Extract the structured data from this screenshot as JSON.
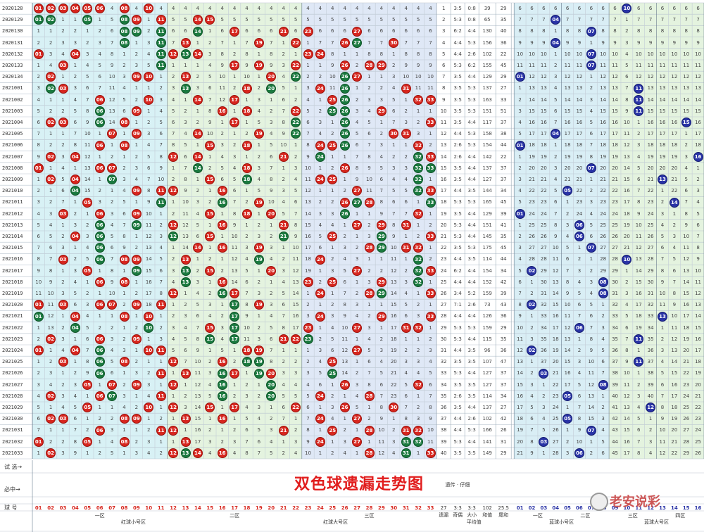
{
  "chart_data": {
    "type": "table",
    "title": "双色球遗漏走势图",
    "issues": [
      "2020128",
      "2020129",
      "2020130",
      "2020131",
      "2020132",
      "2020133",
      "2020134",
      "2021001",
      "2021002",
      "2021003",
      "2021004",
      "2021005",
      "2021006",
      "2021007",
      "2021008",
      "2021009",
      "2021010",
      "2021011",
      "2021012",
      "2021013",
      "2021014",
      "2021015",
      "2021016",
      "2021017",
      "2021018",
      "2021019",
      "2021020",
      "2021021",
      "2021022",
      "2021023",
      "2021024",
      "2021025",
      "2021026",
      "2021027",
      "2021028",
      "2021029",
      "2021030",
      "2021031",
      "2021032",
      "2021033"
    ],
    "red_draws": [
      [
        1,
        2,
        3,
        4,
        5,
        6,
        8,
        10
      ],
      [
        1,
        2,
        5,
        8,
        9,
        11,
        14,
        15
      ],
      [
        8,
        9,
        11,
        14,
        17,
        21,
        23,
        27
      ],
      [
        8,
        11,
        13,
        19,
        22,
        26,
        27,
        30
      ],
      [
        1,
        4,
        11,
        12,
        13,
        14,
        23,
        24
      ],
      [
        3,
        11,
        17,
        19,
        22,
        26,
        28,
        29
      ],
      [
        2,
        9,
        10,
        13,
        20,
        22,
        26,
        27
      ],
      [
        2,
        3,
        13,
        18,
        20,
        24,
        26,
        31
      ],
      [
        6,
        10,
        14,
        17,
        25,
        26,
        32,
        33
      ],
      [
        6,
        9,
        16,
        18,
        22,
        25,
        26,
        29
      ],
      [
        2,
        3,
        6,
        8,
        17,
        22,
        26,
        33
      ],
      [
        7,
        9,
        14,
        19,
        22,
        26,
        30,
        31
      ],
      [
        6,
        8,
        15,
        18,
        24,
        25,
        26,
        32
      ],
      [
        2,
        4,
        12,
        14,
        21,
        24,
        32,
        33
      ],
      [
        1,
        6,
        7,
        14,
        18,
        26,
        32,
        33
      ],
      [
        2,
        4,
        7,
        15,
        18,
        24,
        25,
        32
      ],
      [
        4,
        9,
        11,
        12,
        16,
        27,
        32,
        33
      ],
      [
        5,
        11,
        16,
        19,
        26,
        27,
        28,
        33
      ],
      [
        3,
        6,
        9,
        15,
        18,
        20,
        26,
        32
      ],
      [
        6,
        9,
        12,
        16,
        21,
        27,
        29,
        31
      ],
      [
        4,
        6,
        12,
        15,
        21,
        25,
        29,
        33
      ],
      [
        6,
        14,
        16,
        19,
        28,
        29,
        31,
        32
      ],
      [
        3,
        6,
        8,
        9,
        13,
        19,
        24,
        32
      ],
      [
        5,
        9,
        13,
        15,
        20,
        27,
        32,
        33
      ],
      [
        6,
        8,
        13,
        16,
        23,
        25,
        29,
        32
      ],
      [
        12,
        16,
        17,
        24,
        28,
        29,
        33
      ],
      [
        1,
        3,
        6,
        7,
        9,
        11,
        17,
        19
      ],
      [
        1,
        4,
        8,
        10,
        17,
        24,
        29,
        33
      ],
      [
        4,
        10,
        15,
        17,
        23,
        27,
        31,
        32
      ],
      [
        2,
        6,
        9,
        15,
        17,
        21,
        22,
        23
      ],
      [
        1,
        4,
        6,
        10,
        11,
        18,
        19,
        27
      ],
      [
        3,
        6,
        8,
        12,
        16,
        18,
        19,
        25
      ],
      [
        6,
        11,
        13,
        16,
        17,
        19,
        20,
        25
      ],
      [
        5,
        7,
        9,
        12,
        16,
        20,
        26,
        32
      ],
      [
        2,
        6,
        7,
        11,
        16,
        20,
        24,
        28
      ],
      [
        5,
        10,
        12,
        15,
        17,
        22,
        26,
        30
      ],
      [
        2,
        3,
        8,
        9,
        13,
        16,
        24,
        27
      ],
      [
        6,
        11,
        12,
        21,
        25,
        28,
        31,
        32
      ],
      [
        1,
        5,
        8,
        13,
        24,
        27,
        31,
        32
      ],
      [
        2,
        12,
        13,
        14,
        16,
        28,
        31,
        33
      ]
    ],
    "blue_draws": [
      10,
      4,
      7,
      4,
      7,
      7,
      1,
      11,
      11,
      11,
      15,
      4,
      1,
      16,
      7,
      13,
      5,
      14,
      1,
      6,
      6,
      7,
      10,
      2,
      8,
      8,
      2,
      13,
      6,
      11,
      2,
      11,
      3,
      8,
      5,
      12,
      5,
      7,
      3,
      6
    ],
    "columns_red": [
      "01",
      "02",
      "03",
      "04",
      "05",
      "06",
      "07",
      "08",
      "09",
      "10",
      "11",
      "12",
      "13",
      "14",
      "15",
      "16",
      "17",
      "18",
      "19",
      "20",
      "21",
      "22",
      "23",
      "24",
      "25",
      "26",
      "27",
      "28",
      "29",
      "30",
      "31",
      "32",
      "33"
    ],
    "columns_blue": [
      "01",
      "02",
      "03",
      "04",
      "05",
      "06",
      "07",
      "08",
      "09",
      "10",
      "11",
      "12",
      "13",
      "14",
      "15",
      "16"
    ],
    "stat_headers": [
      "遗漏",
      "奇偶",
      "大小",
      "和值",
      "尾和"
    ],
    "stat_values": [
      "27",
      "3:3",
      "3:3",
      "102",
      "25.5"
    ],
    "zones_red": [
      "一区",
      "二区",
      "三区"
    ],
    "zone_labels_red": [
      "红球小号区",
      "红球大号区"
    ],
    "zones_blue": [
      "一区",
      "二区",
      "三区",
      "四区"
    ],
    "zone_labels_blue": [
      "蓝球小号区",
      "蓝球大号区"
    ],
    "stat_group_label": "平均值",
    "colors": {
      "red_ball": "#d7261e",
      "blue_ball": "#2933a6",
      "green_ball": "#1a7a3f",
      "bg_red_small": "#d8f1f5",
      "bg_red_big": "#e4f3df",
      "bg_blue": "#d9eef5"
    }
  },
  "footer": {
    "row_labels": [
      "试  选→",
      "必中→",
      "球  号"
    ],
    "note": "遗传 · 仔细"
  },
  "watermark": {
    "text": "老安说彩"
  }
}
